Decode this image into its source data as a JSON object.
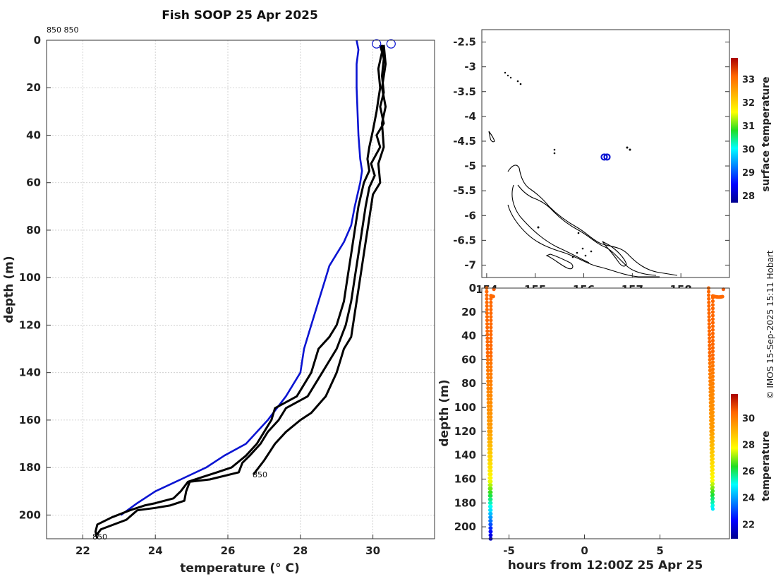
{
  "title": "Fish SOOP 25 Apr 2025",
  "credit": "© IMOS 15-Sep-2025 15:11 Hobart",
  "chart_data": [
    {
      "id": "profile",
      "type": "line",
      "title": "Fish SOOP 25 Apr 2025",
      "xlabel": "temperature",
      "xlabel_unit": "(° C)",
      "ylabel": "depth (m)",
      "xlim": [
        21.0,
        31.7
      ],
      "ylim": [
        210,
        0
      ],
      "xticks": [
        "22",
        "24",
        "26",
        "28",
        "30"
      ],
      "yticks": [
        "0",
        "20",
        "40",
        "60",
        "80",
        "100",
        "120",
        "140",
        "160",
        "180",
        "200"
      ],
      "grid": true,
      "annotations": {
        "top_label": "850 850",
        "mid_label": "850",
        "bottom_label": "850"
      },
      "surface_markers": [
        {
          "temp": 30.1,
          "depth": 1.5
        },
        {
          "temp": 30.5,
          "depth": 1.5
        }
      ],
      "series": [
        {
          "name": "climatology",
          "color": "#0a14d2",
          "points": [
            [
              29.55,
              0
            ],
            [
              29.6,
              4
            ],
            [
              29.55,
              10
            ],
            [
              29.55,
              20
            ],
            [
              29.6,
              40
            ],
            [
              29.65,
              50
            ],
            [
              29.7,
              55
            ],
            [
              29.65,
              60
            ],
            [
              29.5,
              70
            ],
            [
              29.4,
              78
            ],
            [
              29.2,
              85
            ],
            [
              29.0,
              90
            ],
            [
              28.8,
              95
            ],
            [
              28.7,
              100
            ],
            [
              28.5,
              110
            ],
            [
              28.3,
              120
            ],
            [
              28.1,
              130
            ],
            [
              28.0,
              140
            ],
            [
              27.6,
              150
            ],
            [
              27.1,
              160
            ],
            [
              26.5,
              170
            ],
            [
              25.9,
              175
            ],
            [
              25.4,
              180
            ],
            [
              24.7,
              185
            ],
            [
              24.0,
              190
            ],
            [
              23.5,
              195
            ],
            [
              23.05,
              200
            ]
          ]
        },
        {
          "name": "profile-1",
          "color": "#000000",
          "points": [
            [
              30.2,
              2
            ],
            [
              30.25,
              5
            ],
            [
              30.15,
              12
            ],
            [
              30.2,
              20
            ],
            [
              30.15,
              25
            ],
            [
              30.1,
              30
            ],
            [
              30.0,
              38
            ],
            [
              29.9,
              45
            ],
            [
              29.85,
              50
            ],
            [
              29.9,
              55
            ],
            [
              29.75,
              60
            ],
            [
              29.6,
              70
            ],
            [
              29.5,
              80
            ],
            [
              29.4,
              90
            ],
            [
              29.3,
              100
            ],
            [
              29.2,
              110
            ],
            [
              29.0,
              120
            ],
            [
              28.8,
              125
            ],
            [
              28.5,
              130
            ],
            [
              28.3,
              140
            ],
            [
              27.9,
              150
            ],
            [
              27.3,
              155
            ],
            [
              27.2,
              160
            ],
            [
              27.0,
              165
            ],
            [
              26.8,
              170
            ],
            [
              26.5,
              175
            ],
            [
              26.1,
              180
            ],
            [
              25.7,
              182
            ],
            [
              25.3,
              184
            ],
            [
              24.9,
              186
            ],
            [
              24.7,
              190
            ],
            [
              24.5,
              193
            ],
            [
              24.0,
              195
            ],
            [
              23.7,
              196
            ],
            [
              23.3,
              198
            ],
            [
              22.8,
              201
            ],
            [
              22.4,
              204
            ],
            [
              22.35,
              207
            ],
            [
              22.4,
              210
            ]
          ]
        },
        {
          "name": "profile-2",
          "color": "#000000",
          "points": [
            [
              30.25,
              2
            ],
            [
              30.3,
              8
            ],
            [
              30.25,
              15
            ],
            [
              30.3,
              22
            ],
            [
              30.2,
              28
            ],
            [
              30.3,
              35
            ],
            [
              30.1,
              40
            ],
            [
              30.2,
              45
            ],
            [
              29.95,
              52
            ],
            [
              30.05,
              57
            ],
            [
              29.9,
              62
            ],
            [
              29.8,
              70
            ],
            [
              29.7,
              80
            ],
            [
              29.6,
              90
            ],
            [
              29.5,
              100
            ],
            [
              29.4,
              110
            ],
            [
              29.25,
              120
            ],
            [
              29.0,
              130
            ],
            [
              28.8,
              135
            ],
            [
              28.6,
              140
            ],
            [
              28.2,
              150
            ],
            [
              27.6,
              155
            ],
            [
              27.4,
              160
            ],
            [
              27.1,
              165
            ],
            [
              26.9,
              170
            ],
            [
              26.6,
              175
            ],
            [
              26.4,
              178
            ],
            [
              26.3,
              182
            ],
            [
              25.5,
              185
            ],
            [
              24.95,
              186
            ],
            [
              24.85,
              190
            ],
            [
              24.8,
              194
            ],
            [
              24.4,
              196
            ],
            [
              24.0,
              197
            ],
            [
              23.5,
              198
            ],
            [
              23.2,
              202
            ],
            [
              22.5,
              206
            ],
            [
              22.35,
              209
            ]
          ]
        },
        {
          "name": "profile-3",
          "color": "#000000",
          "points": [
            [
              30.3,
              2
            ],
            [
              30.35,
              10
            ],
            [
              30.25,
              20
            ],
            [
              30.35,
              28
            ],
            [
              30.25,
              35
            ],
            [
              30.3,
              45
            ],
            [
              30.15,
              52
            ],
            [
              30.2,
              60
            ],
            [
              30.0,
              65
            ],
            [
              29.9,
              75
            ],
            [
              29.8,
              85
            ],
            [
              29.7,
              95
            ],
            [
              29.6,
              105
            ],
            [
              29.5,
              115
            ],
            [
              29.4,
              125
            ],
            [
              29.2,
              130
            ],
            [
              29.0,
              140
            ],
            [
              28.7,
              150
            ],
            [
              28.3,
              157
            ],
            [
              28.0,
              160
            ],
            [
              27.6,
              165
            ],
            [
              27.3,
              170
            ],
            [
              27.0,
              177
            ],
            [
              26.7,
              183
            ]
          ]
        }
      ]
    },
    {
      "id": "map",
      "type": "scatter",
      "xlim": [
        153.9,
        159.0
      ],
      "ylim": [
        -7.25,
        -2.25
      ],
      "xticks": [
        "154",
        "155",
        "156",
        "157",
        "158"
      ],
      "yticks": [
        "-2.5",
        "-3",
        "-3.5",
        "-4",
        "-4.5",
        "-5",
        "-5.5",
        "-6",
        "-6.5",
        "-7"
      ],
      "points": [
        {
          "lon": 156.45,
          "lat": -4.82,
          "color": "#0a14d2"
        }
      ],
      "colorbar": {
        "label": "surface temperature",
        "range": [
          27.7,
          33.9
        ],
        "ticks": [
          "28",
          "29",
          "30",
          "31",
          "32",
          "33"
        ]
      }
    },
    {
      "id": "time-depth",
      "type": "scatter",
      "xlabel": "hours from 12:00Z 25 Apr 25",
      "ylabel": "depth (m)",
      "xlim": [
        -6.8,
        9.6
      ],
      "ylim": [
        210,
        0
      ],
      "xticks": [
        "-5",
        "0",
        "5"
      ],
      "yticks": [
        "0",
        "20",
        "40",
        "60",
        "80",
        "100",
        "120",
        "140",
        "160",
        "180",
        "200"
      ],
      "colorbar": {
        "label": "temperature",
        "range": [
          20.9,
          31.8
        ],
        "ticks": [
          "22",
          "24",
          "26",
          "28",
          "30"
        ]
      },
      "casts": [
        {
          "hours": [
            -6.5,
            -6.0
          ],
          "max_depth": 210,
          "color_by": "temperature"
        },
        {
          "hours": [
            8.2,
            9.2
          ],
          "max_depth": 185,
          "color_by": "temperature"
        }
      ]
    }
  ]
}
